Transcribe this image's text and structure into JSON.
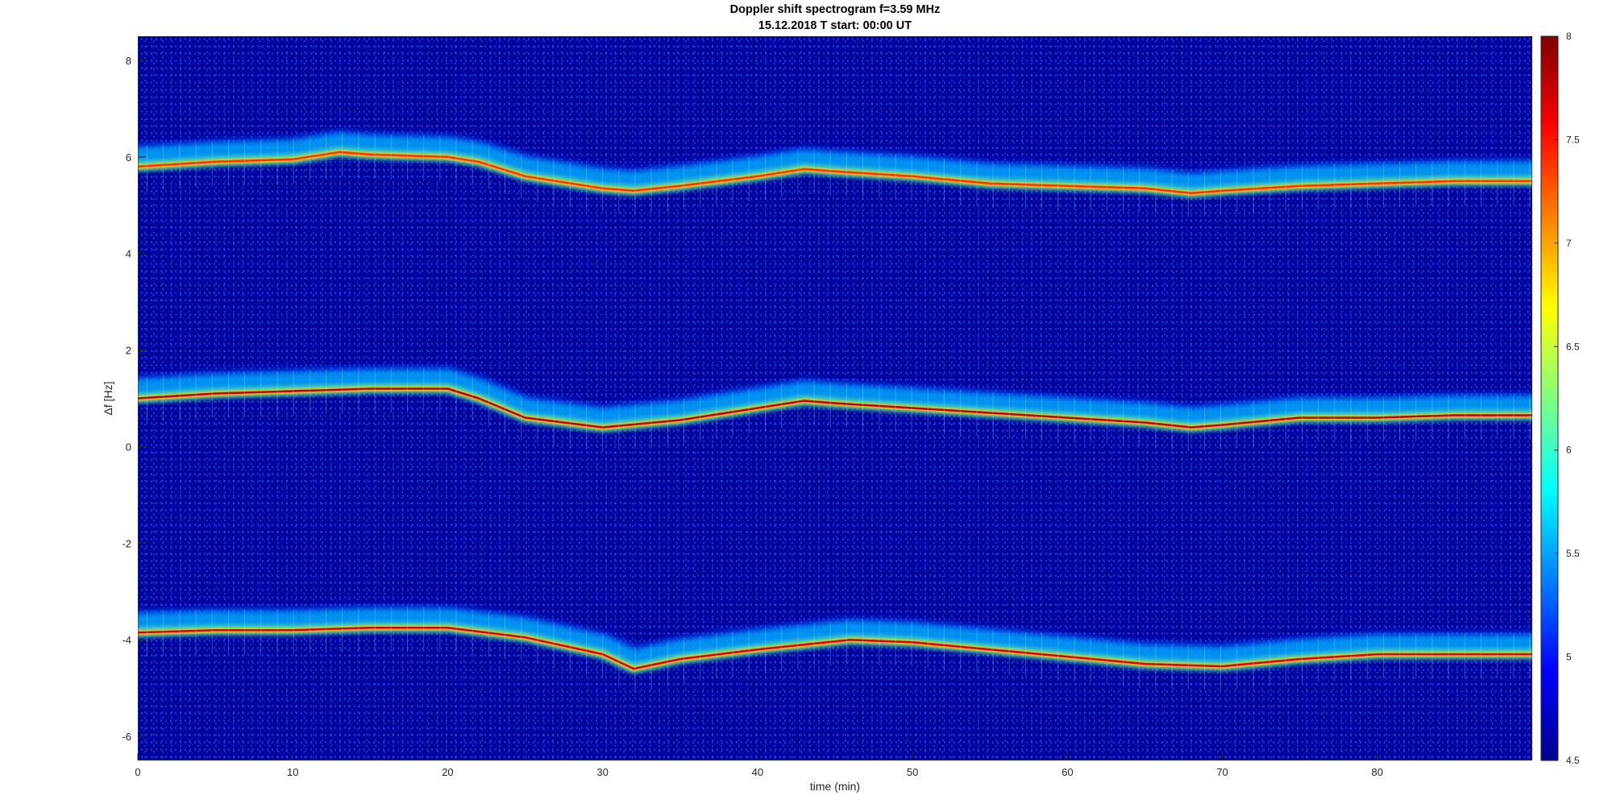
{
  "chart_data": {
    "type": "heatmap",
    "title": "Doppler shift spectrogram f=3.59 MHz",
    "subtitle": "15.12.2018   T start: 00:00 UT",
    "xlabel": "time (min)",
    "ylabel": "Δf [Hz]",
    "xlim": [
      0,
      90
    ],
    "ylim": [
      -6.5,
      8.5
    ],
    "x_ticks": [
      "0",
      "10",
      "20",
      "30",
      "40",
      "50",
      "60",
      "70",
      "80"
    ],
    "y_ticks": [
      "8",
      "6",
      "4",
      "2",
      "0",
      "-2",
      "-4",
      "-6"
    ],
    "colormap": "jet",
    "clim": [
      4.5,
      8
    ],
    "colorbar_ticks": [
      "8",
      "7.5",
      "7",
      "6.5",
      "6",
      "5.5",
      "5",
      "4.5"
    ],
    "grid": false,
    "background_level": 4.6,
    "traces": [
      {
        "time": [
          0,
          5,
          10,
          13,
          15,
          20,
          22,
          25,
          30,
          32,
          35,
          40,
          43,
          45,
          50,
          55,
          60,
          65,
          68,
          70,
          75,
          80,
          85,
          90
        ],
        "freq": [
          5.8,
          5.9,
          5.95,
          6.1,
          6.05,
          6.0,
          5.9,
          5.6,
          5.35,
          5.3,
          5.4,
          5.6,
          5.75,
          5.7,
          5.6,
          5.45,
          5.4,
          5.35,
          5.25,
          5.3,
          5.4,
          5.45,
          5.5,
          5.5
        ],
        "peak": 7.4
      },
      {
        "time": [
          0,
          5,
          10,
          15,
          20,
          22,
          25,
          30,
          35,
          40,
          43,
          45,
          50,
          55,
          60,
          65,
          68,
          70,
          75,
          80,
          85,
          90
        ],
        "freq": [
          1.0,
          1.1,
          1.15,
          1.2,
          1.2,
          1.0,
          0.6,
          0.4,
          0.55,
          0.8,
          0.95,
          0.9,
          0.8,
          0.7,
          0.6,
          0.5,
          0.4,
          0.45,
          0.6,
          0.6,
          0.65,
          0.65
        ],
        "peak": 7.8
      },
      {
        "time": [
          0,
          5,
          10,
          15,
          20,
          25,
          30,
          32,
          35,
          40,
          46,
          50,
          55,
          60,
          65,
          70,
          75,
          80,
          85,
          90
        ],
        "freq": [
          -3.85,
          -3.8,
          -3.8,
          -3.75,
          -3.75,
          -3.95,
          -4.3,
          -4.6,
          -4.4,
          -4.2,
          -4.0,
          -4.05,
          -4.2,
          -4.35,
          -4.5,
          -4.55,
          -4.4,
          -4.3,
          -4.3,
          -4.3
        ],
        "peak": 7.7
      }
    ]
  }
}
